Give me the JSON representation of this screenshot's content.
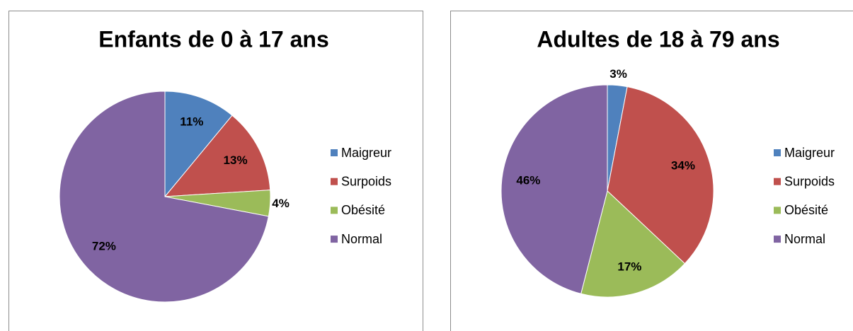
{
  "chart_data": [
    {
      "type": "pie",
      "title": "Enfants de 0 à 17 ans",
      "categories": [
        "Maigreur",
        "Surpoids",
        "Obésité",
        "Normal"
      ],
      "values": [
        11,
        13,
        4,
        72
      ],
      "value_labels": [
        "11%",
        "13%",
        "4%",
        "72%"
      ],
      "colors": [
        "#4f81bd",
        "#c0504d",
        "#9bbb59",
        "#8064a2"
      ]
    },
    {
      "type": "pie",
      "title": "Adultes de 18 à 79 ans",
      "categories": [
        "Maigreur",
        "Surpoids",
        "Obésité",
        "Normal"
      ],
      "values": [
        3,
        34,
        17,
        46
      ],
      "value_labels": [
        "3%",
        "34%",
        "17%",
        "46%"
      ],
      "colors": [
        "#4f81bd",
        "#c0504d",
        "#9bbb59",
        "#8064a2"
      ]
    }
  ]
}
